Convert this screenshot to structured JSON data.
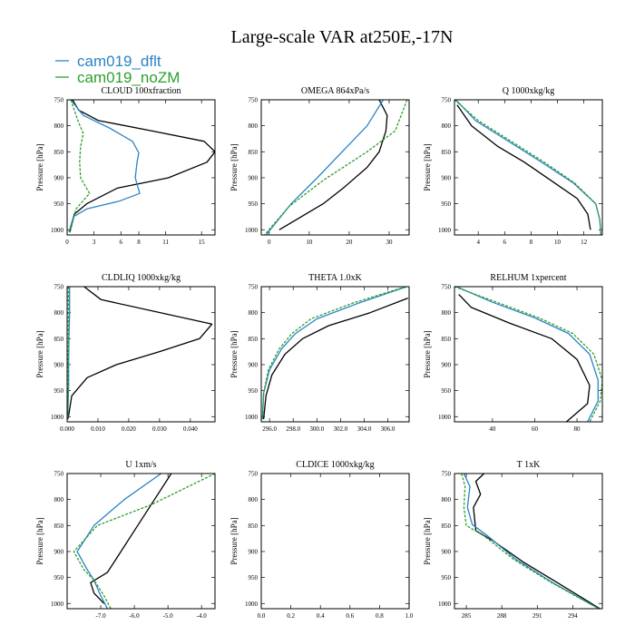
{
  "chart_data": {
    "title": "Large-scale VAR at250E,-17N",
    "legend": [
      {
        "name": "cam019_dflt",
        "color": "#2b83c6"
      },
      {
        "name": "cam019_noZM",
        "color": "#2ca02c"
      }
    ],
    "legend_placement": "top-left",
    "panels": [
      {
        "type": "line",
        "title": "CLOUD  100xfraction",
        "ylabel": "Pressure [hPa]",
        "xlim": [
          0,
          16.5
        ],
        "ylim": [
          1010,
          750
        ],
        "xticks": [
          0,
          3,
          6,
          8,
          11,
          15
        ],
        "xtick_labels": [
          "0",
          "3",
          "6",
          "8",
          "11",
          "15"
        ],
        "yticks": [
          750,
          800,
          850,
          900,
          950,
          1000
        ],
        "series": [
          {
            "name": "black",
            "color": "#000000",
            "x": [
              0.6,
              1.3,
              3.5,
              9.5,
              15.3,
              16.5,
              15.6,
              11.3,
              5.6,
              2.2,
              0.8,
              0.3
            ],
            "y": [
              750,
              770,
              790,
              810,
              830,
              850,
              870,
              900,
              920,
              950,
              970,
              1005
            ]
          },
          {
            "name": "cam019_dflt",
            "color": "#2b83c6",
            "x": [
              0.4,
              1.8,
              4.8,
              7.3,
              8.0,
              7.8,
              7.6,
              8.1,
              5.8,
              2.2,
              0.7,
              0.2
            ],
            "y": [
              750,
              780,
              805,
              830,
              852,
              870,
              900,
              930,
              945,
              960,
              975,
              1005
            ]
          },
          {
            "name": "cam019_noZM",
            "color": "#2ca02c",
            "x": [
              0.4,
              1.2,
              1.8,
              1.5,
              1.4,
              1.5,
              2.5,
              1.0,
              0.3
            ],
            "y": [
              750,
              790,
              815,
              840,
              870,
              900,
              930,
              960,
              1005
            ]
          }
        ]
      },
      {
        "type": "line",
        "title": "OMEGA  864xPa/s",
        "ylabel": "Pressure [hPa]",
        "xlim": [
          -2,
          35
        ],
        "ylim": [
          1010,
          750
        ],
        "xticks": [
          0,
          10,
          20,
          30
        ],
        "xtick_labels": [
          "0",
          "10",
          "20",
          "30"
        ],
        "yticks": [
          750,
          800,
          850,
          900,
          950,
          1000
        ],
        "series": [
          {
            "name": "black",
            "color": "#000000",
            "x": [
              27.5,
              29.5,
              29.2,
              27.5,
              24.5,
              18.5,
              13.5,
              8.0,
              2.5
            ],
            "y": [
              750,
              780,
              810,
              850,
              880,
              920,
              950,
              975,
              1000
            ]
          },
          {
            "name": "cam019_dflt",
            "color": "#2b83c6",
            "x": [
              28.5,
              24.5,
              19.5,
              12.0,
              5.5,
              -0.8
            ],
            "y": [
              750,
              800,
              840,
              900,
              950,
              1010
            ]
          },
          {
            "name": "cam019_noZM",
            "color": "#2ca02c",
            "x": [
              34.5,
              31.5,
              24.5,
              13.5,
              5.0,
              -1.2
            ],
            "y": [
              750,
              810,
              850,
              905,
              955,
              1010
            ]
          }
        ]
      },
      {
        "type": "line",
        "title": "Q  1000xkg/kg",
        "ylabel": "Pressure [hPa]",
        "xlim": [
          2.2,
          13.4
        ],
        "ylim": [
          1010,
          750
        ],
        "xticks": [
          4,
          6,
          8,
          10,
          12
        ],
        "xtick_labels": [
          "4",
          "6",
          "8",
          "10",
          "12"
        ],
        "yticks": [
          750,
          800,
          850,
          900,
          950,
          1000
        ],
        "series": [
          {
            "name": "black",
            "color": "#000000",
            "x": [
              2.4,
              3.5,
              5.5,
              7.5,
              9.5,
              11.5,
              12.3,
              12.5
            ],
            "y": [
              760,
              800,
              840,
              870,
              905,
              940,
              970,
              1000
            ]
          },
          {
            "name": "cam019_dflt",
            "color": "#2b83c6",
            "x": [
              2.3,
              3.8,
              6.3,
              8.8,
              11.2,
              12.9,
              13.2,
              13.3
            ],
            "y": [
              750,
              790,
              830,
              870,
              910,
              950,
              980,
              1010
            ]
          },
          {
            "name": "cam019_noZM",
            "color": "#2ca02c",
            "x": [
              2.2,
              4.0,
              6.5,
              9.0,
              11.3,
              12.9,
              13.2,
              13.3
            ],
            "y": [
              750,
              790,
              830,
              870,
              910,
              950,
              980,
              1010
            ]
          }
        ]
      },
      {
        "type": "line",
        "title": "CLDLIQ  1000xkg/kg",
        "ylabel": "Pressure [hPa]",
        "xlim": [
          0,
          0.048
        ],
        "ylim": [
          1010,
          750
        ],
        "xticks": [
          0,
          0.01,
          0.02,
          0.03,
          0.04
        ],
        "xtick_labels": [
          "0.000",
          "0.010",
          "0.020",
          "0.030",
          "0.040"
        ],
        "yticks": [
          750,
          800,
          850,
          900,
          950,
          1000
        ],
        "series": [
          {
            "name": "black",
            "color": "#000000",
            "x": [
              0.0055,
              0.011,
              0.047,
              0.043,
              0.03,
              0.016,
              0.0065,
              0.0015,
              0.0003
            ],
            "y": [
              750,
              775,
              822,
              850,
              875,
              900,
              925,
              960,
              1005
            ]
          },
          {
            "name": "cam019_dflt",
            "color": "#2b83c6",
            "x": [
              0.0008,
              0.0008,
              0.0006,
              0.0005,
              0.0005,
              0.0003,
              0.0002
            ],
            "y": [
              750,
              800,
              850,
              900,
              940,
              980,
              1005
            ]
          },
          {
            "name": "cam019_noZM",
            "color": "#2ca02c",
            "x": [
              0.0004,
              0.0004,
              0.0004,
              0.0003,
              0.0003,
              0.0002
            ],
            "y": [
              750,
              800,
              850,
              900,
              950,
              1005
            ]
          }
        ]
      },
      {
        "type": "line",
        "title": "THETA  1.0xK",
        "ylabel": "Pressure [hPa]",
        "xlim": [
          295.3,
          307.8
        ],
        "ylim": [
          1010,
          750
        ],
        "xticks": [
          296,
          298,
          300,
          302,
          304,
          306
        ],
        "xtick_labels": [
          "296.0",
          "298.0",
          "300.0",
          "302.0",
          "304.0",
          "306.0"
        ],
        "yticks": [
          750,
          800,
          850,
          900,
          950,
          1000
        ],
        "series": [
          {
            "name": "black",
            "color": "#000000",
            "x": [
              307.7,
              304.5,
              301.0,
              298.8,
              297.3,
              296.2,
              295.7,
              295.5
            ],
            "y": [
              772,
              800,
              825,
              850,
              880,
              920,
              960,
              1005
            ]
          },
          {
            "name": "cam019_dflt",
            "color": "#2b83c6",
            "x": [
              307.6,
              303.5,
              300.0,
              298.2,
              297.0,
              296.0,
              295.5,
              295.4
            ],
            "y": [
              750,
              782,
              812,
              840,
              870,
              910,
              955,
              1005
            ]
          },
          {
            "name": "cam019_noZM",
            "color": "#2ca02c",
            "x": [
              307.5,
              303.0,
              299.5,
              297.9,
              296.8,
              295.9,
              295.5,
              295.4
            ],
            "y": [
              750,
              782,
              812,
              840,
              870,
              910,
              955,
              1005
            ]
          }
        ]
      },
      {
        "type": "line",
        "title": "RELHUM  1xpercent",
        "ylabel": "Pressure [hPa]",
        "xlim": [
          22,
          92
        ],
        "ylim": [
          1010,
          750
        ],
        "xticks": [
          40,
          60,
          80
        ],
        "xtick_labels": [
          "40",
          "60",
          "80"
        ],
        "yticks": [
          750,
          800,
          850,
          900,
          950,
          1000
        ],
        "series": [
          {
            "name": "black",
            "color": "#000000",
            "x": [
              24,
              30,
              48,
              68,
              80,
              86,
              85,
              75
            ],
            "y": [
              765,
              790,
              820,
              850,
              890,
              940,
              975,
              1010
            ]
          },
          {
            "name": "cam019_dflt",
            "color": "#2b83c6",
            "x": [
              23,
              40,
              60,
              76,
              86,
              90,
              90,
              85
            ],
            "y": [
              750,
              780,
              810,
              840,
              880,
              930,
              970,
              1010
            ]
          },
          {
            "name": "cam019_noZM",
            "color": "#2ca02c",
            "x": [
              22,
              42,
              62,
              78,
              88,
              92,
              91,
              86
            ],
            "y": [
              750,
              780,
              810,
              840,
              880,
              930,
              970,
              1010
            ]
          }
        ]
      },
      {
        "type": "line",
        "title": "U  1xm/s",
        "ylabel": "Pressure [hPa]",
        "xlim": [
          -8.0,
          -3.6
        ],
        "ylim": [
          1010,
          750
        ],
        "xticks": [
          -7.0,
          -6.0,
          -5.0,
          -4.0
        ],
        "xtick_labels": [
          "-7.0",
          "-6.0",
          "-5.0",
          "-4.0"
        ],
        "yticks": [
          750,
          800,
          850,
          900,
          950,
          1000
        ],
        "series": [
          {
            "name": "black",
            "color": "#000000",
            "x": [
              -4.9,
              -5.4,
              -5.9,
              -6.4,
              -6.8,
              -7.3,
              -7.2,
              -6.9
            ],
            "y": [
              750,
              800,
              850,
              900,
              940,
              960,
              980,
              1000
            ]
          },
          {
            "name": "cam019_dflt",
            "color": "#2b83c6",
            "x": [
              -5.2,
              -6.3,
              -7.2,
              -7.7,
              -7.4,
              -7.2,
              -7.0,
              -6.8
            ],
            "y": [
              750,
              800,
              850,
              900,
              935,
              955,
              985,
              1010
            ]
          },
          {
            "name": "cam019_noZM",
            "color": "#2ca02c",
            "x": [
              -3.6,
              -5.5,
              -7.1,
              -7.8,
              -7.5,
              -7.2,
              -6.9,
              -6.7
            ],
            "y": [
              750,
              810,
              850,
              900,
              935,
              955,
              985,
              1010
            ]
          }
        ]
      },
      {
        "type": "line",
        "title": "CLDICE  1000xkg/kg",
        "ylabel": "Pressure [hPa]",
        "xlim": [
          0,
          1
        ],
        "ylim": [
          1010,
          750
        ],
        "xticks": [
          0,
          0.2,
          0.4,
          0.6,
          0.8,
          1.0
        ],
        "xtick_labels": [
          "0.0",
          "0.2",
          "0.4",
          "0.6",
          "0.8",
          "1.0"
        ],
        "yticks": [
          750,
          800,
          850,
          900,
          950,
          1000
        ],
        "series": []
      },
      {
        "type": "line",
        "title": "T  1xK",
        "ylabel": "Pressure [hPa]",
        "xlim": [
          284,
          296.5
        ],
        "ylim": [
          1010,
          750
        ],
        "xticks": [
          285,
          288,
          291,
          294
        ],
        "xtick_labels": [
          "285",
          "288",
          "291",
          "294"
        ],
        "yticks": [
          750,
          800,
          850,
          900,
          950,
          1000
        ],
        "series": [
          {
            "name": "black",
            "color": "#000000",
            "x": [
              286.5,
              285.8,
              286.2,
              285.6,
              285.8,
              287.3,
              289.8,
              292.7,
              296.3
            ],
            "y": [
              750,
              765,
              790,
              815,
              860,
              880,
              920,
              960,
              1010
            ]
          },
          {
            "name": "cam019_dflt",
            "color": "#2b83c6",
            "x": [
              284.8,
              285.3,
              285.1,
              285.5,
              286.8,
              289.2,
              292.3,
              296.2
            ],
            "y": [
              750,
              775,
              815,
              848,
              870,
              915,
              960,
              1010
            ]
          },
          {
            "name": "cam019_noZM",
            "color": "#2ca02c",
            "x": [
              284.6,
              284.9,
              284.8,
              285.0,
              286.5,
              289.0,
              292.2,
              296.2
            ],
            "y": [
              750,
              775,
              815,
              850,
              870,
              915,
              960,
              1010
            ]
          }
        ]
      }
    ]
  }
}
